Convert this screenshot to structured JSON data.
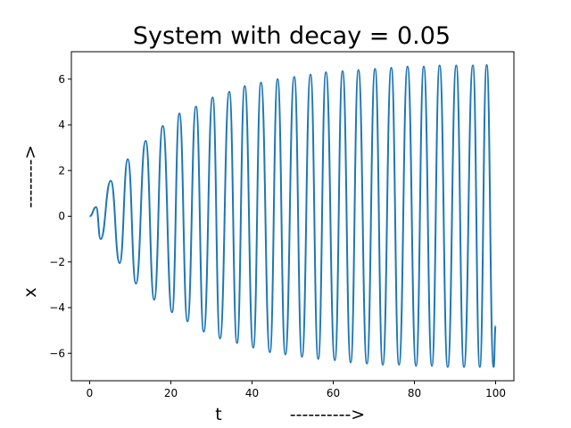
{
  "chart_data": {
    "type": "line",
    "title": "System with decay = 0.05",
    "xlabel": "t",
    "xlabel_arrow": "---------->",
    "ylabel": "x",
    "ylabel_arrow": "-------->",
    "xlim": [
      -4.5,
      104.5
    ],
    "ylim": [
      -7.2,
      7.2
    ],
    "x_ticks": [
      0,
      20,
      40,
      60,
      80,
      100
    ],
    "y_ticks": [
      -6,
      -4,
      -2,
      0,
      2,
      4,
      6
    ],
    "grid": false,
    "legend": "none",
    "series": [
      {
        "color": "#1f77b4",
        "x": [
          0,
          1.6,
          2.7,
          5.2,
          7.4,
          9.4,
          11.4,
          13.8,
          15.9,
          18.0,
          20.3,
          22.1,
          24.1,
          26.2,
          28.1,
          30.3,
          32.1,
          34.4,
          36.3,
          38.2,
          40.3,
          42.2,
          44.4,
          46.3,
          48.2,
          50.4,
          52.3,
          54.4,
          56.3,
          58.2,
          60.4,
          62.3,
          64.3,
          66.2,
          68.3,
          70.3,
          72.2,
          74.3,
          76.2,
          78.3,
          80.4,
          82.3,
          84.3,
          86.2,
          88.2,
          90.3,
          92.2,
          94.4,
          96.1,
          97.8,
          99.5,
          100
        ],
        "y": [
          0,
          0.4,
          -1.0,
          1.55,
          -2.05,
          2.5,
          -2.95,
          3.3,
          -3.65,
          3.95,
          -4.2,
          4.5,
          -4.6,
          4.8,
          -5.05,
          5.2,
          -5.35,
          5.45,
          -5.55,
          5.7,
          -5.75,
          5.85,
          -5.95,
          6.0,
          -6.05,
          6.1,
          -6.15,
          6.2,
          -6.25,
          6.3,
          -6.3,
          6.35,
          -6.4,
          6.4,
          -6.45,
          6.45,
          -6.5,
          6.5,
          -6.5,
          6.55,
          -6.55,
          6.55,
          -6.55,
          6.6,
          -6.6,
          6.6,
          -6.6,
          6.6,
          -6.6,
          6.62,
          -6.6,
          -4.8
        ]
      }
    ]
  }
}
